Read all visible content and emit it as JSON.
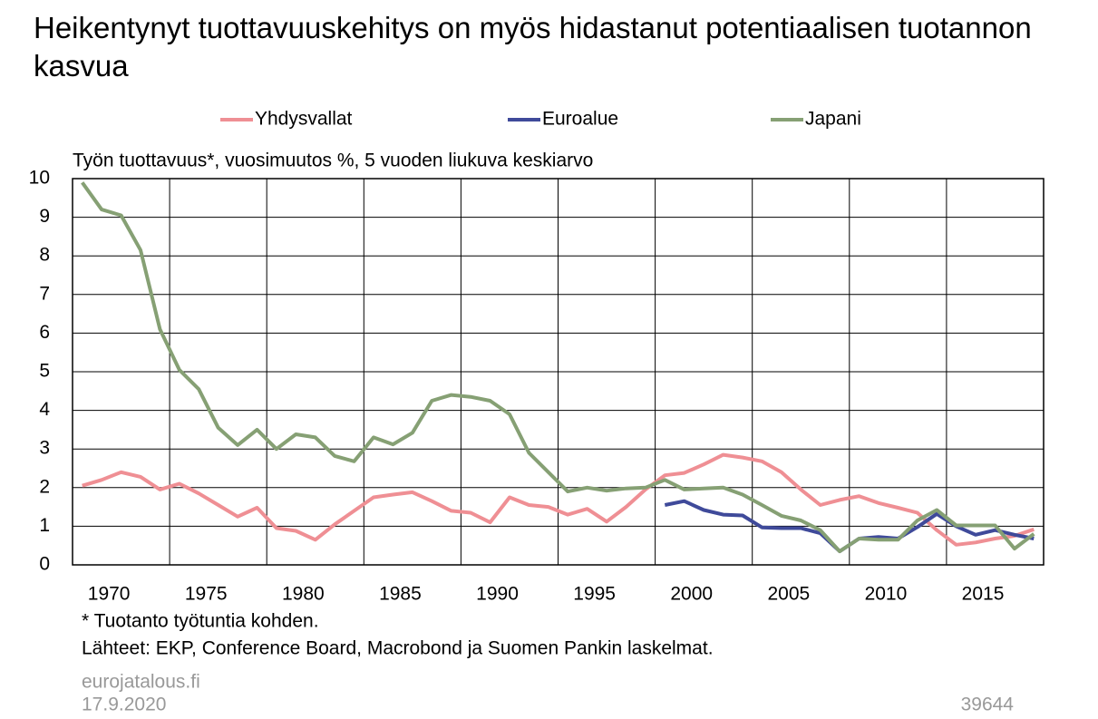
{
  "chart_data": {
    "type": "line",
    "title": "Heikentynyt tuottavuuskehitys on myös hidastanut potentiaalisen tuotannon kasvua",
    "ylabel": "Työn tuottavuus*, vuosimuutos %, 5 vuoden liukuva keskiarvo",
    "footnote": "* Tuotanto työtuntia kohden.",
    "source": "Lähteet: EKP, Conference Board, Macrobond ja Suomen Pankin laskelmat.",
    "site": "eurojatalous.fi",
    "date": "17.9.2020",
    "code": "39644",
    "categories": [
      null,
      "1970",
      null,
      null,
      null,
      null,
      "1975",
      null,
      null,
      null,
      null,
      "1980",
      null,
      null,
      null,
      null,
      "1985",
      null,
      null,
      null,
      null,
      "1990",
      null,
      null,
      null,
      null,
      "1995",
      null,
      null,
      null,
      null,
      "2000",
      null,
      null,
      null,
      null,
      "2005",
      null,
      null,
      null,
      null,
      "2010",
      null,
      null,
      null,
      null,
      "2015",
      null,
      null,
      null
    ],
    "series": [
      {
        "name": "Yhdysvallat",
        "color": "#ef8f94",
        "values": [
          2.05,
          2.2,
          2.4,
          2.28,
          1.95,
          2.1,
          1.85,
          1.55,
          1.25,
          1.48,
          0.95,
          0.88,
          0.65,
          1.05,
          1.4,
          1.75,
          1.82,
          1.88,
          1.65,
          1.4,
          1.35,
          1.1,
          1.75,
          1.55,
          1.5,
          1.3,
          1.45,
          1.12,
          1.5,
          1.95,
          2.32,
          2.38,
          2.6,
          2.85,
          2.78,
          2.68,
          2.4,
          1.95,
          1.55,
          1.68,
          1.78,
          1.6,
          1.48,
          1.35,
          0.9,
          0.52,
          0.58,
          0.68,
          0.75,
          0.92
        ]
      },
      {
        "name": "Euroalue",
        "color": "#3f4a9a",
        "values": [
          null,
          null,
          null,
          null,
          null,
          null,
          null,
          null,
          null,
          null,
          null,
          null,
          null,
          null,
          null,
          null,
          null,
          null,
          null,
          null,
          null,
          null,
          null,
          null,
          null,
          null,
          null,
          null,
          null,
          null,
          1.55,
          1.65,
          1.42,
          1.3,
          1.28,
          0.97,
          0.95,
          0.95,
          0.82,
          0.35,
          0.68,
          0.72,
          0.68,
          0.98,
          1.32,
          1.0,
          0.78,
          0.9,
          0.78,
          0.68
        ]
      },
      {
        "name": "Japani",
        "color": "#86a074",
        "values": [
          9.9,
          9.2,
          9.05,
          8.15,
          6.1,
          5.05,
          4.55,
          3.55,
          3.1,
          3.5,
          3.0,
          3.38,
          3.3,
          2.82,
          2.68,
          3.3,
          3.12,
          3.42,
          4.25,
          4.4,
          4.35,
          4.25,
          3.9,
          2.9,
          2.4,
          1.9,
          2.0,
          1.92,
          1.98,
          2.0,
          2.2,
          1.95,
          1.98,
          2.0,
          1.82,
          1.55,
          1.27,
          1.15,
          0.9,
          0.35,
          0.68,
          0.65,
          0.65,
          1.15,
          1.42,
          1.02,
          1.02,
          1.02,
          0.42,
          0.8
        ]
      }
    ],
    "ylim": [
      0,
      10
    ],
    "yticks": [
      0,
      1,
      2,
      3,
      4,
      5,
      6,
      7,
      8,
      9,
      10
    ],
    "grid": true
  }
}
